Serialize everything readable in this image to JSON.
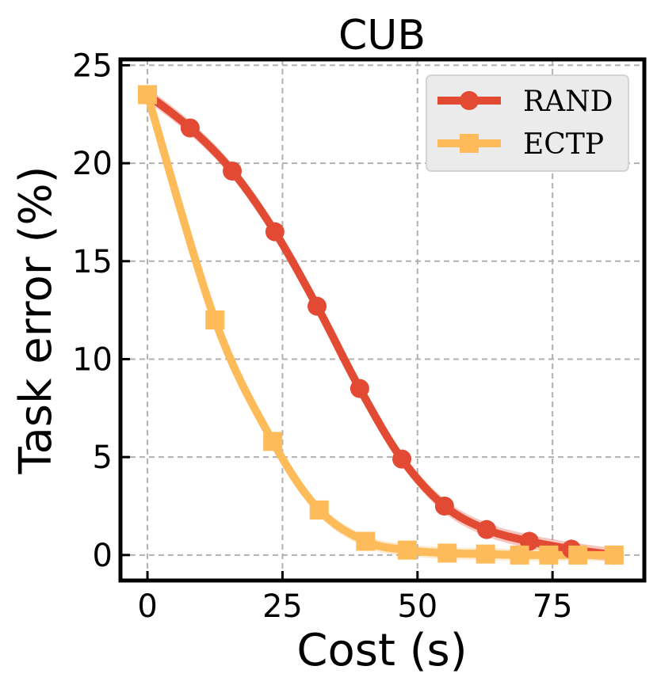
{
  "chart_data": {
    "type": "line",
    "title": "CUB",
    "xlabel": "Cost (s)",
    "ylabel": "Task error (%)",
    "xlim": [
      -5,
      92
    ],
    "ylim": [
      -1.3,
      25.3
    ],
    "xticks": [
      0,
      25,
      50,
      75
    ],
    "yticks": [
      0,
      5,
      10,
      15,
      20,
      25
    ],
    "grid": true,
    "legend_position": "top-right",
    "series": [
      {
        "name": "RAND",
        "color": "#e34a33",
        "marker": "circle",
        "x": [
          0,
          7.9,
          15.7,
          23.6,
          31.4,
          39.3,
          47.1,
          55.0,
          62.8,
          70.7,
          78.5,
          86.4
        ],
        "y": [
          23.5,
          21.8,
          19.6,
          16.5,
          12.7,
          8.5,
          4.9,
          2.5,
          1.3,
          0.7,
          0.3,
          0.0
        ],
        "band": 0.35
      },
      {
        "name": "ECTP",
        "color": "#fdbb5a",
        "marker": "square",
        "x": [
          0,
          12.5,
          23.2,
          31.8,
          40.4,
          48.1,
          55.5,
          62.6,
          68.9,
          74.3,
          79.7,
          86.4
        ],
        "y": [
          23.5,
          12.0,
          5.8,
          2.3,
          0.7,
          0.25,
          0.1,
          0.05,
          0.0,
          0.0,
          0.0,
          0.0
        ],
        "band": 0.3
      }
    ]
  }
}
